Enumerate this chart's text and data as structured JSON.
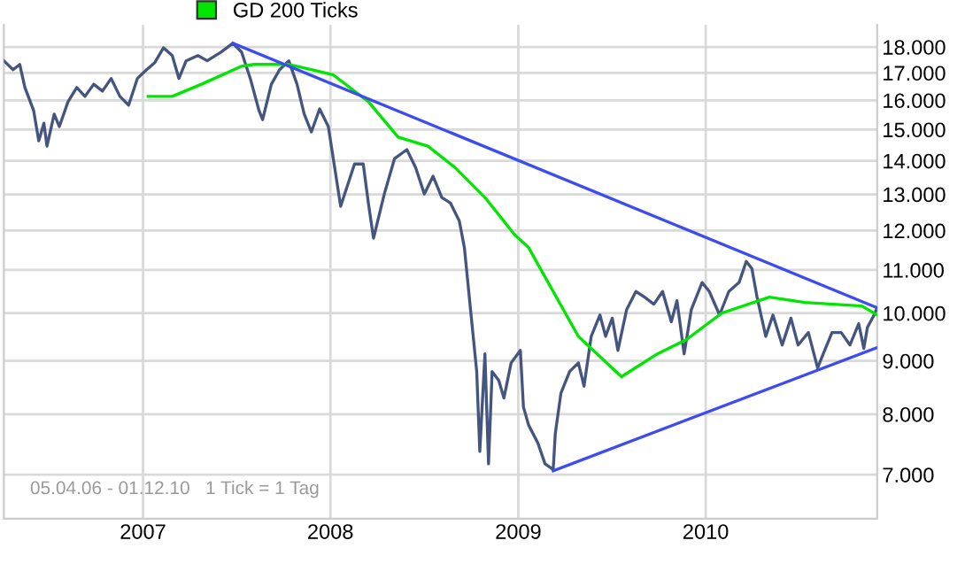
{
  "chart_data": {
    "type": "line",
    "log": "y",
    "grid": true,
    "legend": "top left",
    "ylim": [
      6350,
      18900
    ],
    "yticks": [
      {
        "value": 7000,
        "label": "7.000"
      },
      {
        "value": 8000,
        "label": "8.000"
      },
      {
        "value": 9000,
        "label": "9.000"
      },
      {
        "value": 10000,
        "label": "10.000"
      },
      {
        "value": 11000,
        "label": "11.000"
      },
      {
        "value": 12000,
        "label": "12.000"
      },
      {
        "value": 13000,
        "label": "13.000"
      },
      {
        "value": 14000,
        "label": "14.000"
      },
      {
        "value": 15000,
        "label": "15.000"
      },
      {
        "value": 16000,
        "label": "16.000"
      },
      {
        "value": 17000,
        "label": "17.000"
      },
      {
        "value": 18000,
        "label": "18.000"
      }
    ],
    "xlim": [
      "2006-04-05",
      "2010-12-01"
    ],
    "xticks": [
      {
        "value": "2007-01-01",
        "label": "2007"
      },
      {
        "value": "2008-01-01",
        "label": "2008"
      },
      {
        "value": "2009-01-01",
        "label": "2009"
      },
      {
        "value": "2010-01-01",
        "label": "2010"
      }
    ],
    "annotations": [
      "05.04.06 - 01.12.10   1 Tick = 1 Tag"
    ],
    "series": [
      {
        "color": "#44557f",
        "x": [
          "2006-04-05",
          "2006-04-23",
          "2006-05-06",
          "2006-05-16",
          "2006-06-02",
          "2006-06-12",
          "2006-06-22",
          "2006-06-28",
          "2006-07-12",
          "2006-07-22",
          "2006-08-08",
          "2006-08-25",
          "2006-09-10",
          "2006-09-27",
          "2006-10-14",
          "2006-10-31",
          "2006-11-17",
          "2006-12-04",
          "2006-12-21",
          "2007-01-08",
          "2007-01-24",
          "2007-02-10",
          "2007-02-27",
          "2007-03-12",
          "2007-03-26",
          "2007-04-18",
          "2007-05-06",
          "2007-06-02",
          "2007-06-25",
          "2007-07-12",
          "2007-07-29",
          "2007-08-15",
          "2007-08-22",
          "2007-09-08",
          "2007-09-24",
          "2007-10-12",
          "2007-10-28",
          "2007-11-11",
          "2007-11-25",
          "2007-12-11",
          "2007-12-28",
          "2008-01-21",
          "2008-02-17",
          "2008-03-05",
          "2008-03-15",
          "2008-03-25",
          "2008-04-15",
          "2008-05-05",
          "2008-05-29",
          "2008-06-15",
          "2008-07-02",
          "2008-07-19",
          "2008-08-05",
          "2008-08-22",
          "2008-09-08",
          "2008-09-18",
          "2008-10-01",
          "2008-10-12",
          "2008-10-18",
          "2008-10-28",
          "2008-11-04",
          "2008-11-11",
          "2008-11-24",
          "2008-12-04",
          "2008-12-18",
          "2009-01-05",
          "2009-01-11",
          "2009-01-21",
          "2009-02-08",
          "2009-02-22",
          "2009-03-10",
          "2009-03-14",
          "2009-03-25",
          "2009-04-11",
          "2009-04-28",
          "2009-05-09",
          "2009-05-23",
          "2009-06-09",
          "2009-06-20",
          "2009-07-03",
          "2009-07-14",
          "2009-07-31",
          "2009-08-18",
          "2009-09-04",
          "2009-09-22",
          "2009-10-09",
          "2009-10-26",
          "2009-11-06",
          "2009-11-20",
          "2009-12-04",
          "2009-12-25",
          "2010-01-08",
          "2010-01-28",
          "2010-02-15",
          "2010-03-07",
          "2010-03-21",
          "2010-04-01",
          "2010-04-11",
          "2010-04-28",
          "2010-05-12",
          "2010-05-30",
          "2010-06-16",
          "2010-06-30",
          "2010-07-20",
          "2010-08-07",
          "2010-08-18",
          "2010-09-04",
          "2010-09-22",
          "2010-10-09",
          "2010-10-26",
          "2010-11-05",
          "2010-11-12",
          "2010-11-25",
          "2010-12-01"
        ],
        "values": [
          17460,
          17120,
          17320,
          16460,
          15640,
          14630,
          15210,
          14460,
          15520,
          15100,
          15950,
          16460,
          16140,
          16580,
          16330,
          16790,
          16140,
          15830,
          16790,
          17120,
          17390,
          17970,
          17660,
          16790,
          17460,
          17660,
          17460,
          17800,
          18150,
          17800,
          16790,
          15640,
          15330,
          16580,
          17120,
          17460,
          16580,
          15520,
          14920,
          15700,
          15100,
          12660,
          13900,
          13900,
          12750,
          11800,
          13010,
          14070,
          14350,
          13790,
          13010,
          13530,
          12910,
          12750,
          12260,
          11560,
          9960,
          8790,
          7370,
          9140,
          7170,
          8790,
          8620,
          8290,
          8960,
          9210,
          8130,
          7810,
          7510,
          7170,
          7080,
          7660,
          8380,
          8790,
          8960,
          8510,
          9500,
          9960,
          9500,
          9890,
          9210,
          10080,
          10490,
          10360,
          10200,
          10490,
          9810,
          10280,
          9140,
          10080,
          10700,
          10490,
          9960,
          10490,
          10700,
          11210,
          11030,
          10360,
          9500,
          9960,
          9320,
          9890,
          9320,
          9580,
          8860,
          9140,
          9580,
          9580,
          9320,
          9770,
          9250,
          9690,
          9960,
          10120
        ]
      },
      {
        "name": "GD 200 Ticks",
        "color": "#00e600",
        "x": [
          "2007-01-11",
          "2007-02-27",
          "2007-04-25",
          "2007-07-12",
          "2007-08-05",
          "2007-10-12",
          "2007-11-25",
          "2008-01-07",
          "2008-03-15",
          "2008-05-12",
          "2008-07-09",
          "2008-08-31",
          "2008-10-28",
          "2008-12-25",
          "2009-01-21",
          "2009-04-28",
          "2009-07-21",
          "2009-09-29",
          "2009-11-24",
          "2010-02-01",
          "2010-05-05",
          "2010-07-13",
          "2010-11-01",
          "2010-12-01"
        ],
        "values": [
          16140,
          16140,
          16580,
          17250,
          17320,
          17320,
          17120,
          16920,
          15950,
          14750,
          14460,
          13790,
          12910,
          11890,
          11560,
          9500,
          8690,
          9140,
          9430,
          10000,
          10360,
          10240,
          10160,
          9960
        ]
      },
      {
        "color": "#3c4cf0",
        "x": [
          "2007-06-25",
          "2010-12-01"
        ],
        "values": [
          18150,
          10120
        ]
      },
      {
        "color": "#3c4cf0",
        "x": [
          "2009-03-10",
          "2010-12-01"
        ],
        "values": [
          7060,
          9270
        ]
      }
    ]
  }
}
